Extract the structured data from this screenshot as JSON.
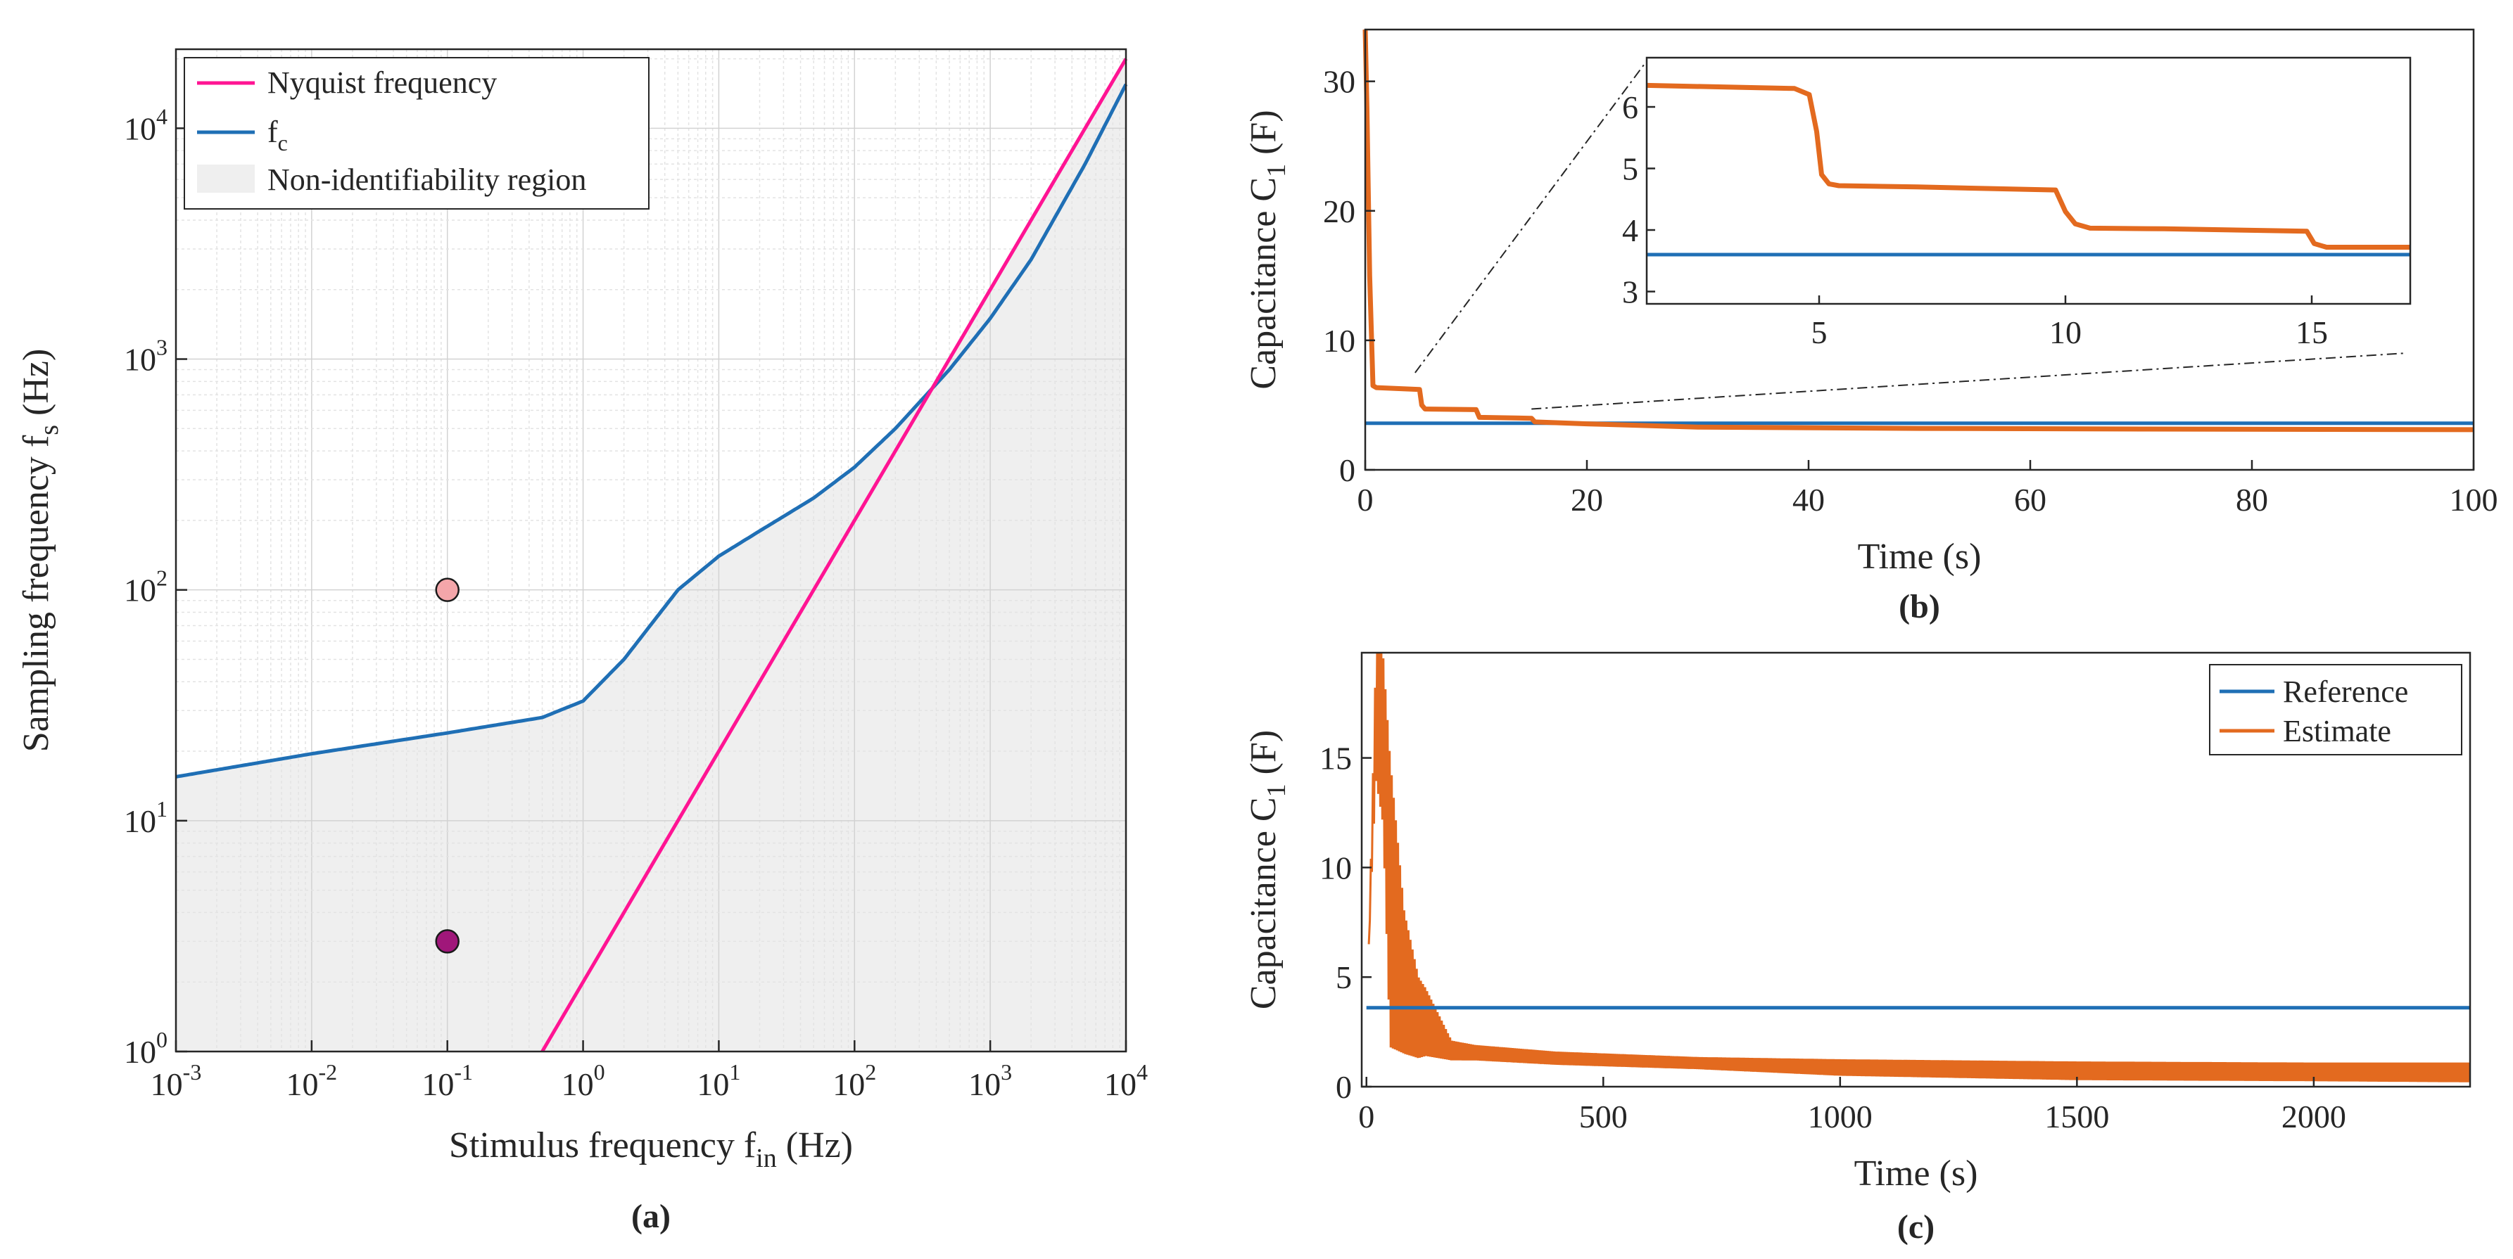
{
  "chart_data": [
    {
      "type": "line",
      "panel": "a",
      "caption": "(a)",
      "xscale": "log",
      "yscale": "log",
      "xlim": [
        0.001,
        10000
      ],
      "ylim": [
        1,
        22000
      ],
      "xlabel": "Stimulus frequency f",
      "xlabel_sub": "in",
      "xlabel_unit": " (Hz)",
      "ylabel": "Sampling frequency f",
      "ylabel_sub": "s",
      "ylabel_unit": " (Hz)",
      "xticks": [
        {
          "b": "10",
          "e": "-3"
        },
        {
          "b": "10",
          "e": "-2"
        },
        {
          "b": "10",
          "e": "-1"
        },
        {
          "b": "10",
          "e": "0"
        },
        {
          "b": "10",
          "e": "1"
        },
        {
          "b": "10",
          "e": "2"
        },
        {
          "b": "10",
          "e": "3"
        },
        {
          "b": "10",
          "e": "4"
        }
      ],
      "yticks": [
        {
          "b": "10",
          "e": "0"
        },
        {
          "b": "10",
          "e": "1"
        },
        {
          "b": "10",
          "e": "2"
        },
        {
          "b": "10",
          "e": "3"
        },
        {
          "b": "10",
          "e": "4"
        }
      ],
      "grid": true,
      "legend_position": "top-left",
      "series": [
        {
          "name": "Nyquist frequency",
          "color": "#ff1493",
          "x": [
            0.5,
            10000
          ],
          "y": [
            1,
            20000
          ]
        },
        {
          "name": "f",
          "name_sub": "c",
          "color": "#1f6fb5",
          "x": [
            0.001,
            0.01,
            0.1,
            0.5,
            1,
            2,
            5,
            10,
            20,
            50,
            100,
            200,
            500,
            1000,
            2000,
            5000,
            10000
          ],
          "y": [
            15.5,
            19.5,
            24,
            28,
            33,
            50,
            100,
            140,
            180,
            250,
            340,
            500,
            900,
            1500,
            2700,
            7000,
            15500
          ]
        }
      ],
      "region": {
        "name": "Non-identifiability region",
        "color": "#efefef"
      },
      "points": [
        {
          "x": 0.1,
          "y": 100,
          "color": "#f4a6aa"
        },
        {
          "x": 0.1,
          "y": 3,
          "color": "#a0177a"
        }
      ]
    },
    {
      "type": "line",
      "panel": "b",
      "caption": "(b)",
      "xlim": [
        0,
        100
      ],
      "ylim": [
        0,
        34
      ],
      "xticks": [
        "0",
        "20",
        "40",
        "60",
        "80",
        "100"
      ],
      "yticks": [
        "0",
        "10",
        "20",
        "30"
      ],
      "xlabel": "Time (s)",
      "ylabel": "Capacitance C",
      "ylabel_sub": "1",
      "ylabel_unit": " (F)",
      "series": [
        {
          "role": "reference",
          "color": "#1f6fb5",
          "x": [
            0,
            100
          ],
          "y": [
            3.6,
            3.6
          ]
        },
        {
          "role": "estimate",
          "color": "#e36a1f",
          "x": [
            0,
            0.15,
            0.4,
            0.7,
            1,
            4.9,
            5.1,
            5.4,
            10,
            10.3,
            15,
            15.3,
            20,
            30,
            50,
            70,
            100
          ],
          "y": [
            34,
            28,
            15,
            6.5,
            6.35,
            6.2,
            5,
            4.7,
            4.65,
            4.05,
            3.98,
            3.7,
            3.55,
            3.3,
            3.2,
            3.15,
            3.1
          ]
        }
      ],
      "inset": {
        "xlim": [
          1.5,
          17
        ],
        "ylim": [
          2.8,
          6.8
        ],
        "xticks": [
          "5",
          "10",
          "15"
        ],
        "yticks": [
          "3",
          "4",
          "5",
          "6"
        ],
        "series": [
          {
            "role": "reference",
            "color": "#1f6fb5",
            "x": [
              1.5,
              17
            ],
            "y": [
              3.6,
              3.6
            ]
          },
          {
            "role": "estimate",
            "color": "#e36a1f",
            "x": [
              1.5,
              4.5,
              4.8,
              4.95,
              5.05,
              5.2,
              5.4,
              7,
              9.8,
              10,
              10.2,
              10.5,
              12,
              14.9,
              15.05,
              15.3,
              17
            ],
            "y": [
              6.35,
              6.3,
              6.2,
              5.6,
              4.9,
              4.75,
              4.72,
              4.7,
              4.65,
              4.3,
              4.1,
              4.03,
              4.02,
              3.98,
              3.78,
              3.72,
              3.72
            ]
          }
        ]
      }
    },
    {
      "type": "line",
      "panel": "c",
      "caption": "(c)",
      "xlim": [
        -10,
        2330
      ],
      "ylim": [
        0,
        19.8
      ],
      "xticks": [
        "0",
        "500",
        "1000",
        "1500",
        "2000"
      ],
      "yticks": [
        "0",
        "5",
        "10",
        "15"
      ],
      "xlabel": "Time (s)",
      "ylabel": "Capacitance C",
      "ylabel_sub": "1",
      "ylabel_unit": " (F)",
      "legend_position": "top-right",
      "series": [
        {
          "name": "Reference",
          "color": "#1f6fb5",
          "x": [
            0,
            2330
          ],
          "y": [
            3.6,
            3.6
          ]
        },
        {
          "name": "Estimate",
          "color": "#e36a1f",
          "osc_upper": {
            "x": [
              5,
              20,
              35,
              50,
              80,
              110,
              125,
              180,
              230,
              400,
              700,
              1000,
              1500,
              2000,
              2330
            ],
            "y": [
              6.5,
              19.8,
              19.8,
              15,
              8,
              5,
              4.5,
              2.1,
              1.9,
              1.6,
              1.35,
              1.25,
              1.15,
              1.1,
              1.1
            ]
          },
          "osc_lower": {
            "x": [
              5,
              20,
              35,
              50,
              80,
              110,
              125,
              180,
              230,
              400,
              700,
              1000,
              1500,
              2000,
              2330
            ],
            "y": [
              6.5,
              14,
              12,
              1.8,
              1.5,
              1.3,
              1.4,
              1.2,
              1.2,
              1.0,
              0.8,
              0.5,
              0.3,
              0.25,
              0.2
            ]
          }
        }
      ]
    }
  ]
}
